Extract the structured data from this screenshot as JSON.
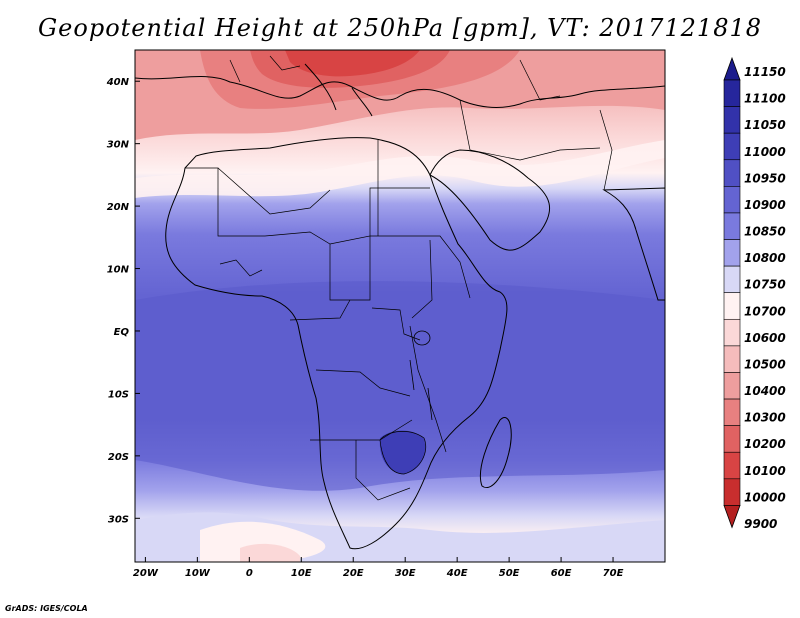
{
  "title": "Geopotential Height at 250hPa [gpm], VT: 2017121818",
  "footer": "GrADS: IGES/COLA",
  "map": {
    "lon_range": [
      -22,
      80
    ],
    "lat_range": [
      -37,
      45
    ],
    "lon_ticks": [
      {
        "value": -20,
        "label": "20W"
      },
      {
        "value": -10,
        "label": "10W"
      },
      {
        "value": 0,
        "label": "0"
      },
      {
        "value": 10,
        "label": "10E"
      },
      {
        "value": 20,
        "label": "20E"
      },
      {
        "value": 30,
        "label": "30E"
      },
      {
        "value": 40,
        "label": "40E"
      },
      {
        "value": 50,
        "label": "50E"
      },
      {
        "value": 60,
        "label": "60E"
      },
      {
        "value": 70,
        "label": "70E"
      }
    ],
    "lat_ticks": [
      {
        "value": 40,
        "label": "40N"
      },
      {
        "value": 30,
        "label": "30N"
      },
      {
        "value": 20,
        "label": "20N"
      },
      {
        "value": 10,
        "label": "10N"
      },
      {
        "value": 0,
        "label": "EQ"
      },
      {
        "value": -10,
        "label": "10S"
      },
      {
        "value": -20,
        "label": "20S"
      },
      {
        "value": -30,
        "label": "30S"
      }
    ]
  },
  "colorbar": {
    "levels": [
      {
        "label": "11150",
        "color": "#1c1c8c"
      },
      {
        "label": "11100",
        "color": "#26269c"
      },
      {
        "label": "11050",
        "color": "#3232aa"
      },
      {
        "label": "11000",
        "color": "#3e3eb6"
      },
      {
        "label": "10950",
        "color": "#5050c4"
      },
      {
        "label": "10900",
        "color": "#6464d2"
      },
      {
        "label": "10850",
        "color": "#7a7ade"
      },
      {
        "label": "10800",
        "color": "#a2a2ec"
      },
      {
        "label": "10750",
        "color": "#d8d8f6"
      },
      {
        "label": "10700",
        "color": "#fff2f2"
      },
      {
        "label": "10600",
        "color": "#fbd8d8"
      },
      {
        "label": "10500",
        "color": "#f5bcbc"
      },
      {
        "label": "10400",
        "color": "#ee9e9e"
      },
      {
        "label": "10300",
        "color": "#e88080"
      },
      {
        "label": "10200",
        "color": "#e06262"
      },
      {
        "label": "10100",
        "color": "#d84444"
      },
      {
        "label": "10000",
        "color": "#c82e2e"
      },
      {
        "label": "9900",
        "color": "#b42020"
      }
    ]
  }
}
